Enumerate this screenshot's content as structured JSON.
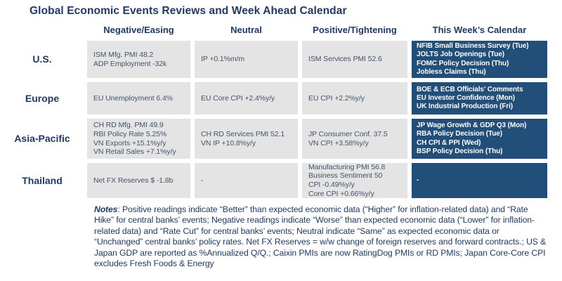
{
  "title": "Global Economic Events Reviews and Week Ahead Calendar",
  "columns": [
    "Negative/Easing",
    "Neutral",
    "Positive/Tightening",
    "This Week’s Calendar"
  ],
  "rows": [
    {
      "label": "U.S.",
      "negative": [
        "ISM Mfg. PMI 48.2",
        "ADP Employment -32k"
      ],
      "neutral": [
        "IP +0.1%m/m"
      ],
      "positive": [
        "ISM Services PMI 52.6"
      ],
      "calendar": [
        "NFIB Small Business Survey (Tue)",
        "JOLTS Job Openings (Tue)",
        "FOMC Policy Decision (Thu)",
        "Jobless Claims (Thu)"
      ]
    },
    {
      "label": "Europe",
      "negative": [
        "EU Unemployment 6.4%"
      ],
      "neutral": [
        "EU Core CPI +2.4%y/y"
      ],
      "positive": [
        "EU CPI +2.2%y/y"
      ],
      "calendar": [
        "BOE & ECB Officials’ Comments",
        "EU Investor Confidence (Mon)",
        "UK Industrial Production (Fri)"
      ]
    },
    {
      "label": "Asia-Pacific",
      "negative": [
        "CH RD Mfg. PMI 49.9",
        "RBI Policy Rate 5.25%",
        "VN Exports +15.1%y/y",
        "VN Retail Sales +7.1%y/y"
      ],
      "neutral": [
        "CH RD Services PMI 52.1",
        "VN IP +10.8%y/y"
      ],
      "positive": [
        "JP Consumer Conf. 37.5",
        "VN CPI +3.58%y/y"
      ],
      "calendar": [
        "JP Wage Growth & GDP Q3 (Mon)",
        "RBA Policy Decision (Tue)",
        "CH CPI & PPI (Wed)",
        "BSP Policy Decision (Thu)"
      ]
    },
    {
      "label": "Thailand",
      "negative": [
        "Net FX Reserves $ -1.8b"
      ],
      "neutral": [
        "-"
      ],
      "positive": [
        "Manufacturing PMI 56.8",
        "Business Sentiment 50",
        "CPI -0.49%y/y",
        "Core CPI +0.66%y/y"
      ],
      "calendar": [
        "-"
      ]
    }
  ],
  "notes": {
    "label": "Notes",
    "text": ": Positive readings indicate “Better” than expected economic data (“Higher” for inflation-related data) and “Rate Hike” for central banks’ events; Negative readings indicate “Worse” than expected economic data (“Lower” for inflation-related data) and “Rate Cut” for central banks’ events; Neutral indicate “Same” as expected economic data or “Unchanged” central banks’ policy rates. Net FX Reserves = w/w change of foreign reserves and forward contracts.; US & Japan GDP are reported as %Annualized Q/Q.; Caixin PMIs are now RatingDog PMIs or RD PMIs; Japan Core-Core CPI excludes Fresh Foods & Energy"
  },
  "colors": {
    "navy": "#1f3a64",
    "text": "#44546a",
    "cell_bg": "#e4e4e4",
    "calendar_bg": "#224f79",
    "calendar_text": "#ffffff"
  }
}
